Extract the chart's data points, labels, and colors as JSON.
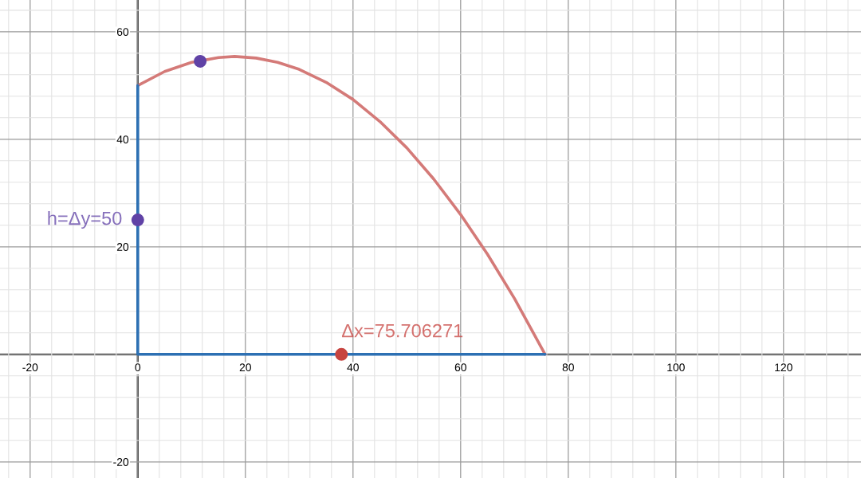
{
  "chart_data": {
    "type": "line",
    "series": [
      {
        "color": "#d47a78",
        "x": [
          0,
          5,
          10,
          15,
          18,
          22,
          26,
          30,
          35,
          40,
          45,
          50,
          55,
          60,
          65,
          70,
          75.7
        ],
        "values": [
          50,
          52.6,
          54.3,
          55.2,
          55.4,
          55.1,
          54.3,
          53.0,
          50.6,
          47.4,
          43.3,
          38.4,
          32.6,
          26.0,
          18.6,
          10.4,
          0
        ]
      },
      {
        "color": "#2d70b3",
        "x": [
          0,
          0,
          75.7
        ],
        "values": [
          50,
          0,
          0
        ]
      },
      {
        "type": "scatter",
        "color": "#6042a6",
        "x": [
          11.6
        ],
        "values": [
          54.5
        ]
      },
      {
        "type": "scatter",
        "color": "#c74440",
        "x": [
          37.85
        ],
        "values": [
          0
        ]
      },
      {
        "type": "scatter",
        "color": "#6042a6",
        "x": [
          0
        ],
        "values": [
          25
        ]
      }
    ],
    "annotations": [
      {
        "text": "h=Δy=50",
        "x": 0,
        "y": 25
      },
      {
        "text": "Δx=75.706271",
        "x": 37.85,
        "y": 0
      }
    ],
    "xlim": [
      -25.6,
      134.4
    ],
    "ylim": [
      -23,
      65.9
    ],
    "xticks": [
      -20,
      0,
      20,
      40,
      60,
      80,
      100,
      120
    ],
    "yticks": [
      -20,
      20,
      40,
      60
    ],
    "grid": true,
    "line_style": "solid"
  }
}
